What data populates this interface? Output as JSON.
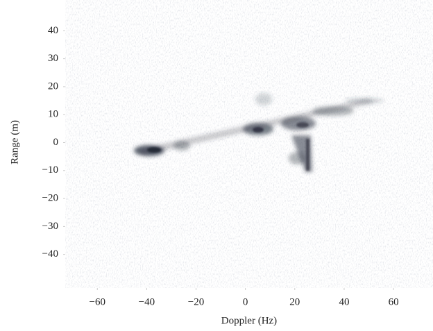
{
  "chart_data": {
    "type": "heatmap",
    "xlabel": "Doppler (Hz)",
    "ylabel": "Range (m)",
    "xlim": [
      -73,
      76
    ],
    "ylim": [
      -52,
      51
    ],
    "xticks": [
      {
        "value": -60,
        "label": "−60"
      },
      {
        "value": -40,
        "label": "−40"
      },
      {
        "value": -20,
        "label": "−20"
      },
      0,
      20,
      40,
      60
    ],
    "yticks": [
      40,
      30,
      20,
      10,
      0,
      {
        "value": -10,
        "label": "−10"
      },
      {
        "value": -20,
        "label": "−20"
      },
      {
        "value": -30,
        "label": "−30"
      },
      {
        "value": -40,
        "label": "−40"
      }
    ]
  }
}
